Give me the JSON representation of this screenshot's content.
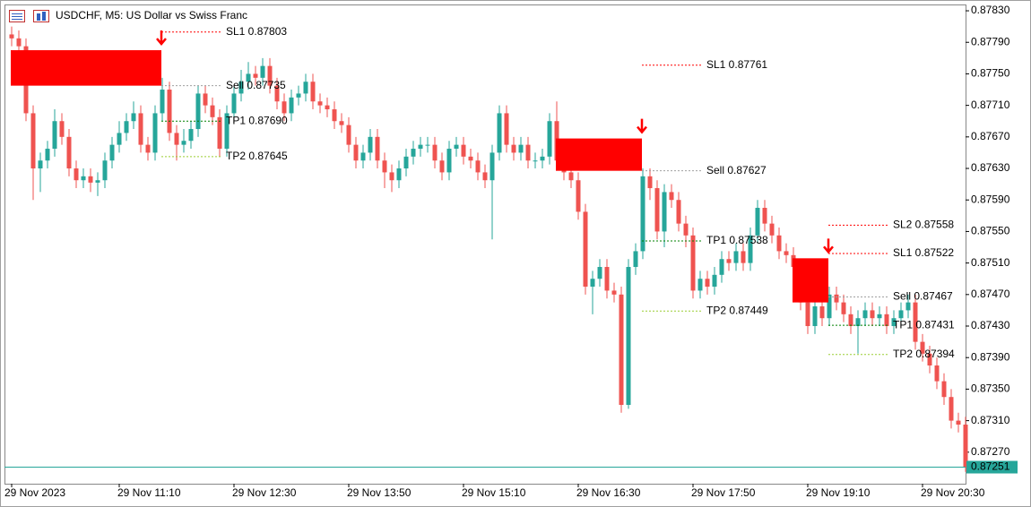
{
  "chart_data": {
    "type": "candlestick",
    "title": "USDCHF, M5:  US Dollar vs Swiss Franc",
    "categories": [
      "29 Nov 2023",
      null,
      null,
      null,
      null,
      null,
      null,
      null,
      null,
      null,
      null,
      null,
      null,
      null,
      null,
      "29 Nov 11:10",
      null,
      null,
      null,
      null,
      null,
      null,
      null,
      null,
      null,
      null,
      null,
      null,
      null,
      null,
      null,
      "29 Nov 12:30",
      null,
      null,
      null,
      null,
      null,
      null,
      null,
      null,
      null,
      null,
      null,
      null,
      null,
      null,
      null,
      "29 Nov 13:50",
      null,
      null,
      null,
      null,
      null,
      null,
      null,
      null,
      null,
      null,
      null,
      null,
      null,
      null,
      null,
      "29 Nov 15:10",
      null,
      null,
      null,
      null,
      null,
      null,
      null,
      null,
      null,
      null,
      null,
      null,
      null,
      null,
      null,
      "29 Nov 16:30",
      null,
      null,
      null,
      null,
      null,
      null,
      null,
      null,
      null,
      null,
      null,
      null,
      null,
      null,
      null,
      "29 Nov 17:50",
      null,
      null,
      null,
      null,
      null,
      null,
      null,
      null,
      null,
      null,
      null,
      null,
      null,
      null,
      null,
      "29 Nov 19:10",
      null,
      null,
      null,
      null,
      null,
      null,
      null,
      null,
      null,
      null,
      null,
      null,
      null,
      null,
      null,
      "29 Nov 20:30",
      null,
      null,
      null,
      null,
      null,
      null
    ],
    "open": [
      0.878,
      0.87795,
      0.87785,
      0.877,
      0.8763,
      0.8764,
      0.87655,
      0.8769,
      0.8767,
      0.8763,
      0.87615,
      0.8762,
      0.87612,
      0.87615,
      0.8764,
      0.8766,
      0.87675,
      0.8769,
      0.877,
      0.8766,
      0.8765,
      0.877,
      0.8773,
      0.87675,
      0.8766,
      0.87665,
      0.8768,
      0.87725,
      0.8771,
      0.87695,
      0.87655,
      0.877,
      0.87725,
      0.8774,
      0.8775,
      0.87745,
      0.8776,
      0.87735,
      0.87715,
      0.877,
      0.8772,
      0.87725,
      0.8774,
      0.87715,
      0.8771,
      0.87705,
      0.8769,
      0.87685,
      0.8766,
      0.8764,
      0.8765,
      0.8767,
      0.8764,
      0.87625,
      0.87615,
      0.8763,
      0.87645,
      0.87655,
      0.8766,
      0.8766,
      0.8764,
      0.87625,
      0.87655,
      0.8766,
      0.87645,
      0.8764,
      0.87625,
      0.87615,
      0.8765,
      0.877,
      0.8766,
      0.8765,
      0.8766,
      0.8764,
      0.8764,
      0.87645,
      0.8769,
      0.8764,
      0.87625,
      0.87615,
      0.87575,
      0.8748,
      0.8749,
      0.87505,
      0.87475,
      0.8747,
      0.8733,
      0.87505,
      0.87525,
      0.8762,
      0.87605,
      0.8755,
      0.876,
      0.8759,
      0.8756,
      0.87545,
      0.87475,
      0.8749,
      0.8748,
      0.87495,
      0.87515,
      0.8751,
      0.87525,
      0.8751,
      0.87545,
      0.8758,
      0.8756,
      0.87545,
      0.87525,
      0.8752,
      0.87505,
      0.8746,
      0.8743,
      0.87455,
      0.8744,
      0.8747,
      0.8746,
      0.87445,
      0.8743,
      0.8744,
      0.8745,
      0.8744,
      0.87445,
      0.8743,
      0.8744,
      0.8745,
      0.8746,
      0.8741,
      0.87395,
      0.8738,
      0.8736,
      0.8734,
      0.8731,
      0.87305
    ],
    "high": [
      0.8781,
      0.87805,
      0.87795,
      0.8771,
      0.8765,
      0.87665,
      0.87705,
      0.877,
      0.8768,
      0.8764,
      0.8763,
      0.8763,
      0.87625,
      0.8765,
      0.8767,
      0.8769,
      0.877,
      0.87715,
      0.8771,
      0.8767,
      0.8771,
      0.87745,
      0.8774,
      0.87685,
      0.8768,
      0.8769,
      0.87735,
      0.87735,
      0.8772,
      0.87705,
      0.8771,
      0.87735,
      0.87755,
      0.87765,
      0.8776,
      0.8777,
      0.8777,
      0.87745,
      0.87725,
      0.8773,
      0.87735,
      0.8775,
      0.8775,
      0.87725,
      0.8772,
      0.87715,
      0.877,
      0.87695,
      0.8767,
      0.8766,
      0.8768,
      0.8768,
      0.8765,
      0.87635,
      0.8764,
      0.87655,
      0.87665,
      0.8767,
      0.8767,
      0.8767,
      0.8765,
      0.87665,
      0.8767,
      0.8767,
      0.87655,
      0.8765,
      0.87635,
      0.8766,
      0.8771,
      0.8771,
      0.8767,
      0.8767,
      0.8767,
      0.8765,
      0.87655,
      0.877,
      0.87715,
      0.8765,
      0.87635,
      0.87625,
      0.87585,
      0.875,
      0.87515,
      0.87515,
      0.87485,
      0.8748,
      0.87515,
      0.87535,
      0.8763,
      0.8763,
      0.87615,
      0.8761,
      0.8761,
      0.876,
      0.8757,
      0.87555,
      0.875,
      0.875,
      0.87505,
      0.87525,
      0.87525,
      0.87535,
      0.87535,
      0.87555,
      0.8759,
      0.8759,
      0.8757,
      0.87555,
      0.87535,
      0.8753,
      0.87515,
      0.8747,
      0.87465,
      0.87465,
      0.8748,
      0.8748,
      0.8747,
      0.87455,
      0.8745,
      0.8746,
      0.8746,
      0.87455,
      0.87455,
      0.8745,
      0.8746,
      0.8747,
      0.8747,
      0.8742,
      0.87405,
      0.8739,
      0.8737,
      0.8735,
      0.8732,
      0.87315
    ],
    "low": [
      0.87785,
      0.87775,
      0.8769,
      0.8759,
      0.876,
      0.8763,
      0.87645,
      0.8766,
      0.8762,
      0.87605,
      0.87605,
      0.876,
      0.87595,
      0.87605,
      0.8763,
      0.8765,
      0.87665,
      0.8768,
      0.8765,
      0.8764,
      0.8764,
      0.8769,
      0.87665,
      0.8764,
      0.8765,
      0.87655,
      0.8767,
      0.877,
      0.87685,
      0.87645,
      0.87645,
      0.8769,
      0.87715,
      0.8773,
      0.87735,
      0.87735,
      0.87725,
      0.87705,
      0.8769,
      0.8769,
      0.8771,
      0.87715,
      0.87705,
      0.877,
      0.87695,
      0.8768,
      0.87675,
      0.8765,
      0.8763,
      0.8763,
      0.8764,
      0.8763,
      0.87605,
      0.876,
      0.87605,
      0.8762,
      0.87635,
      0.87645,
      0.8765,
      0.8763,
      0.87615,
      0.87615,
      0.87645,
      0.87635,
      0.8763,
      0.87615,
      0.87605,
      0.8754,
      0.8764,
      0.8765,
      0.8764,
      0.8764,
      0.8763,
      0.8763,
      0.8763,
      0.87635,
      0.8763,
      0.87615,
      0.87605,
      0.87565,
      0.8747,
      0.87445,
      0.8748,
      0.87465,
      0.8746,
      0.8732,
      0.87325,
      0.87495,
      0.87515,
      0.8759,
      0.8754,
      0.8753,
      0.8758,
      0.8755,
      0.8753,
      0.87465,
      0.87465,
      0.8747,
      0.8747,
      0.87485,
      0.875,
      0.875,
      0.875,
      0.875,
      0.87535,
      0.8755,
      0.87535,
      0.87515,
      0.8751,
      0.87495,
      0.8745,
      0.8742,
      0.8742,
      0.8743,
      0.8743,
      0.8745,
      0.87435,
      0.8742,
      0.87395,
      0.8743,
      0.8743,
      0.8743,
      0.8742,
      0.8742,
      0.8743,
      0.8744,
      0.874,
      0.87385,
      0.8737,
      0.8735,
      0.8733,
      0.873,
      0.87295,
      0.87245
    ],
    "close": [
      0.87795,
      0.87785,
      0.877,
      0.8763,
      0.8764,
      0.87655,
      0.8769,
      0.8767,
      0.8763,
      0.87615,
      0.8762,
      0.87612,
      0.87615,
      0.8764,
      0.8766,
      0.87675,
      0.8769,
      0.877,
      0.8766,
      0.8765,
      0.877,
      0.8773,
      0.87675,
      0.8766,
      0.87665,
      0.8768,
      0.87725,
      0.8771,
      0.87695,
      0.87655,
      0.877,
      0.87725,
      0.8774,
      0.8775,
      0.87745,
      0.8776,
      0.87735,
      0.87715,
      0.877,
      0.8772,
      0.87725,
      0.8774,
      0.87715,
      0.8771,
      0.87705,
      0.8769,
      0.87685,
      0.8766,
      0.8764,
      0.8765,
      0.8767,
      0.8764,
      0.87625,
      0.87615,
      0.8763,
      0.87645,
      0.87655,
      0.8766,
      0.8766,
      0.8764,
      0.87625,
      0.87655,
      0.8766,
      0.87645,
      0.8764,
      0.87625,
      0.87615,
      0.8765,
      0.877,
      0.8766,
      0.8765,
      0.8766,
      0.8764,
      0.8764,
      0.87645,
      0.8769,
      0.8764,
      0.87625,
      0.87615,
      0.87575,
      0.8748,
      0.8749,
      0.87505,
      0.87475,
      0.8747,
      0.8733,
      0.87505,
      0.87525,
      0.8762,
      0.87605,
      0.8755,
      0.876,
      0.8759,
      0.8756,
      0.87545,
      0.87475,
      0.8749,
      0.8748,
      0.87495,
      0.87515,
      0.8751,
      0.87525,
      0.8751,
      0.87545,
      0.8758,
      0.8756,
      0.87545,
      0.87525,
      0.8752,
      0.87505,
      0.8746,
      0.8743,
      0.87455,
      0.8744,
      0.8747,
      0.8746,
      0.87445,
      0.8743,
      0.8744,
      0.8745,
      0.8744,
      0.87445,
      0.8743,
      0.8744,
      0.8745,
      0.8746,
      0.8741,
      0.87395,
      0.8738,
      0.8736,
      0.8734,
      0.8731,
      0.87305,
      0.87251
    ],
    "up_color": "#26a69a",
    "down_color": "#ef5350",
    "ylim": [
      0.8723,
      0.87838
    ],
    "yticks": [
      {
        "value": 0.8783,
        "label": "0.87830"
      },
      {
        "value": 0.8779,
        "label": "0.87790"
      },
      {
        "value": 0.8775,
        "label": "0.87750"
      },
      {
        "value": 0.8771,
        "label": "0.87710"
      },
      {
        "value": 0.8767,
        "label": "0.87670"
      },
      {
        "value": 0.8763,
        "label": "0.87630"
      },
      {
        "value": 0.8759,
        "label": "0.87590"
      },
      {
        "value": 0.8755,
        "label": "0.87550"
      },
      {
        "value": 0.8751,
        "label": "0.87510"
      },
      {
        "value": 0.8747,
        "label": "0.87470"
      },
      {
        "value": 0.8743,
        "label": "0.87430"
      },
      {
        "value": 0.8739,
        "label": "0.87390"
      },
      {
        "value": 0.8735,
        "label": "0.87350"
      },
      {
        "value": 0.8731,
        "label": "0.87310"
      },
      {
        "value": 0.8727,
        "label": "0.87270"
      }
    ],
    "last_price": 0.87251,
    "last_price_color": "#26a69a",
    "zone_color": "#ff0000",
    "setups": [
      {
        "x": [
          0,
          21
        ],
        "zone": [
          0.8778,
          0.87735
        ],
        "levels": [
          {
            "label": "SL1 0.87803",
            "value": 0.87803,
            "color": "#ff0000"
          },
          {
            "label": "Sell 0.87735",
            "value": 0.87735,
            "color": "#a0a0a0"
          },
          {
            "label": "TP1 0.87690",
            "value": 0.8769,
            "color": "#008000"
          },
          {
            "label": "TP2 0.87645",
            "value": 0.87645,
            "color": "#9acd32"
          }
        ]
      },
      {
        "x": [
          76,
          88
        ],
        "zone": [
          0.87668,
          0.87627
        ],
        "levels": [
          {
            "label": "SL1 0.87761",
            "value": 0.87761,
            "color": "#ff0000"
          },
          {
            "label": "Sell 0.87627",
            "value": 0.87627,
            "color": "#a0a0a0"
          },
          {
            "label": "TP1 0.87538",
            "value": 0.87538,
            "color": "#008000"
          },
          {
            "label": "TP2 0.87449",
            "value": 0.87449,
            "color": "#9acd32"
          }
        ]
      },
      {
        "x": [
          109,
          114
        ],
        "zone": [
          0.87516,
          0.8746
        ],
        "levels": [
          {
            "label": "SL2 0.87558",
            "value": 0.87558,
            "color": "#ff0000"
          },
          {
            "label": "SL1 0.87522",
            "value": 0.87522,
            "color": "#ff0000"
          },
          {
            "label": "Sell 0.87467",
            "value": 0.87467,
            "color": "#a0a0a0"
          },
          {
            "label": "TP1 0.87431",
            "value": 0.87431,
            "color": "#008000"
          },
          {
            "label": "TP2 0.87394",
            "value": 0.87394,
            "color": "#9acd32"
          }
        ]
      }
    ]
  }
}
